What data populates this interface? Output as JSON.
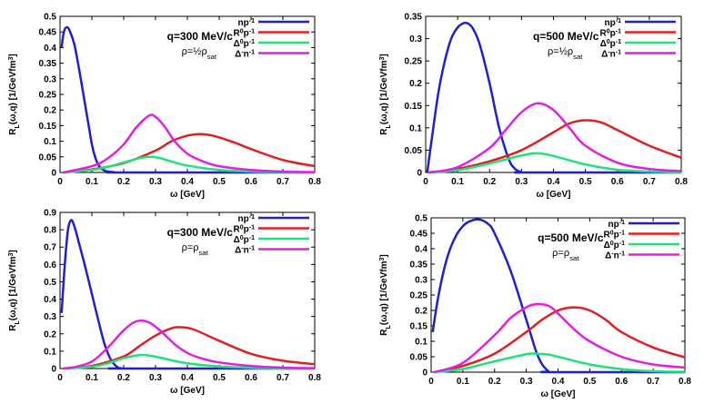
{
  "chart_data": [
    {
      "type": "line",
      "annotation": "q=300 MeV/c",
      "density_label": "ρ=½ρsat",
      "density_parts": [
        "ρ=½ρ",
        "sat"
      ],
      "ylabel": "RL(ω,q) [1/GeVfm³]",
      "ylabel_parts": [
        "R",
        "L",
        "(ω,q) [1/GeVfm",
        "3",
        "]"
      ],
      "xlabel": "ω [GeV]",
      "xlim": [
        0,
        0.8
      ],
      "ylim": [
        0,
        0.5
      ],
      "xticks": [
        "0",
        "0.1",
        "0.2",
        "0.3",
        "0.4",
        "0.5",
        "0.6",
        "0.7",
        "0.8"
      ],
      "yticks": [
        "0",
        "0.05",
        "0.1",
        "0.15",
        "0.2",
        "0.25",
        "0.3",
        "0.35",
        "0.4",
        "0.45",
        "0.5"
      ],
      "legend_position": "top-right",
      "series": [
        {
          "name": "np-1",
          "label_parts": [
            "np",
            "-1"
          ],
          "color": "#1f1fcf",
          "x": [
            0.005,
            0.012,
            0.022,
            0.032,
            0.045,
            0.06,
            0.075,
            0.09,
            0.1,
            0.11,
            0.12,
            0.13,
            0.14,
            0.15,
            0.17,
            0.2,
            0.8
          ],
          "y": [
            0.4,
            0.45,
            0.465,
            0.45,
            0.41,
            0.33,
            0.24,
            0.15,
            0.09,
            0.05,
            0.025,
            0.012,
            0.006,
            0.003,
            0.001,
            0,
            0
          ]
        },
        {
          "name": "R0p-1",
          "label_parts": [
            "R",
            "0",
            "p",
            "-1"
          ],
          "color": "#e02020",
          "x": [
            0.01,
            0.1,
            0.2,
            0.3,
            0.35,
            0.4,
            0.44,
            0.48,
            0.55,
            0.6,
            0.7,
            0.8
          ],
          "y": [
            0,
            0.01,
            0.03,
            0.07,
            0.1,
            0.118,
            0.123,
            0.118,
            0.095,
            0.075,
            0.04,
            0.02
          ]
        },
        {
          "name": "Δ0p-1",
          "label_parts": [
            "Δ",
            "0",
            "p",
            "-1"
          ],
          "color": "#22e07a",
          "x": [
            0.01,
            0.1,
            0.15,
            0.2,
            0.25,
            0.28,
            0.31,
            0.35,
            0.4,
            0.5,
            0.6,
            0.7,
            0.8
          ],
          "y": [
            0,
            0.008,
            0.018,
            0.032,
            0.046,
            0.05,
            0.047,
            0.035,
            0.022,
            0.008,
            0.003,
            0.001,
            0
          ]
        },
        {
          "name": "Δ-n-1",
          "label_parts": [
            "Δ",
            "-",
            "n",
            "-1"
          ],
          "color": "#e020e0",
          "x": [
            0.01,
            0.1,
            0.15,
            0.2,
            0.24,
            0.28,
            0.3,
            0.33,
            0.36,
            0.4,
            0.45,
            0.5,
            0.6,
            0.7,
            0.8
          ],
          "y": [
            0,
            0.02,
            0.045,
            0.09,
            0.145,
            0.182,
            0.178,
            0.145,
            0.1,
            0.06,
            0.035,
            0.02,
            0.008,
            0.003,
            0.001
          ]
        }
      ]
    },
    {
      "type": "line",
      "annotation": "q=500 MeV/c",
      "density_label": "ρ=½ρsat",
      "density_parts": [
        "ρ=½ρ",
        "sat"
      ],
      "ylabel": "RL(ω,q) [1/GeVfm³]",
      "ylabel_parts": [
        "R",
        "L",
        "(ω,q) [1/GeVfm",
        "3",
        "]"
      ],
      "xlabel": "ω [GeV]",
      "xlim": [
        0,
        0.8
      ],
      "ylim": [
        0,
        0.35
      ],
      "xticks": [
        "0",
        "0.1",
        "0.2",
        "0.3",
        "0.4",
        "0.5",
        "0.6",
        "0.7",
        "0.8"
      ],
      "yticks": [
        "0",
        "0.05",
        "0.1",
        "0.15",
        "0.2",
        "0.25",
        "0.3",
        "0.35"
      ],
      "legend_position": "top-right",
      "series": [
        {
          "name": "np-1",
          "label_parts": [
            "np",
            "-1"
          ],
          "color": "#1f1fcf",
          "x": [
            0.005,
            0.02,
            0.04,
            0.06,
            0.08,
            0.1,
            0.12,
            0.135,
            0.15,
            0.17,
            0.2,
            0.23,
            0.26,
            0.28,
            0.3,
            0.32,
            0.8
          ],
          "y": [
            0,
            0.08,
            0.18,
            0.25,
            0.3,
            0.325,
            0.335,
            0.333,
            0.32,
            0.285,
            0.2,
            0.1,
            0.03,
            0.008,
            0.001,
            0,
            0
          ]
        },
        {
          "name": "R0p-1",
          "label_parts": [
            "R",
            "0",
            "p",
            "-1"
          ],
          "color": "#e02020",
          "x": [
            0.01,
            0.1,
            0.2,
            0.3,
            0.4,
            0.45,
            0.5,
            0.55,
            0.6,
            0.7,
            0.8
          ],
          "y": [
            0,
            0.008,
            0.025,
            0.05,
            0.09,
            0.11,
            0.117,
            0.112,
            0.095,
            0.06,
            0.033
          ]
        },
        {
          "name": "Δ0p-1",
          "label_parts": [
            "Δ",
            "0",
            "p",
            "-1"
          ],
          "color": "#22e07a",
          "x": [
            0.01,
            0.1,
            0.2,
            0.3,
            0.35,
            0.4,
            0.5,
            0.6,
            0.7,
            0.8
          ],
          "y": [
            0,
            0.005,
            0.02,
            0.038,
            0.043,
            0.037,
            0.018,
            0.006,
            0.002,
            0
          ]
        },
        {
          "name": "Δ-n-1",
          "label_parts": [
            "Δ",
            "-",
            "n",
            "-1"
          ],
          "color": "#e020e0",
          "x": [
            0.01,
            0.1,
            0.2,
            0.25,
            0.3,
            0.35,
            0.4,
            0.45,
            0.5,
            0.6,
            0.7,
            0.8
          ],
          "y": [
            0,
            0.012,
            0.055,
            0.095,
            0.135,
            0.155,
            0.14,
            0.1,
            0.06,
            0.022,
            0.008,
            0.003
          ]
        }
      ]
    },
    {
      "type": "line",
      "annotation": "q=300 MeV/c",
      "density_label": "ρ=ρsat",
      "density_parts": [
        "ρ=ρ",
        "sat"
      ],
      "ylabel": "RL(ω,q) [1/GeVfm³]",
      "ylabel_parts": [
        "R",
        "L",
        "(ω,q) [1/GeVfm",
        "3",
        "]"
      ],
      "xlabel": "ω [GeV]",
      "xlim": [
        0,
        0.8
      ],
      "ylim": [
        0,
        0.9
      ],
      "xticks": [
        "0",
        "0.1",
        "0.2",
        "0.3",
        "0.4",
        "0.5",
        "0.6",
        "0.7",
        "0.8"
      ],
      "yticks": [
        "0",
        "0.1",
        "0.2",
        "0.3",
        "0.4",
        "0.5",
        "0.6",
        "0.7",
        "0.8",
        "0.9"
      ],
      "legend_position": "top-right",
      "series": [
        {
          "name": "np-1",
          "label_parts": [
            "np",
            "-1"
          ],
          "color": "#1f1fcf",
          "x": [
            0.005,
            0.015,
            0.025,
            0.035,
            0.045,
            0.06,
            0.08,
            0.1,
            0.12,
            0.14,
            0.16,
            0.18,
            0.19,
            0.2,
            0.8
          ],
          "y": [
            0.32,
            0.6,
            0.8,
            0.855,
            0.82,
            0.72,
            0.58,
            0.43,
            0.28,
            0.14,
            0.05,
            0.008,
            0.002,
            0,
            0
          ]
        },
        {
          "name": "R0p-1",
          "label_parts": [
            "R",
            "0",
            "p",
            "-1"
          ],
          "color": "#e02020",
          "x": [
            0.01,
            0.1,
            0.2,
            0.25,
            0.3,
            0.35,
            0.38,
            0.42,
            0.5,
            0.6,
            0.7,
            0.8
          ],
          "y": [
            0,
            0.015,
            0.07,
            0.13,
            0.19,
            0.232,
            0.238,
            0.225,
            0.16,
            0.085,
            0.045,
            0.025
          ]
        },
        {
          "name": "Δ0p-1",
          "label_parts": [
            "Δ",
            "0",
            "p",
            "-1"
          ],
          "color": "#22e07a",
          "x": [
            0.01,
            0.1,
            0.15,
            0.2,
            0.25,
            0.28,
            0.32,
            0.4,
            0.5,
            0.6,
            0.7,
            0.8
          ],
          "y": [
            0,
            0.01,
            0.03,
            0.06,
            0.078,
            0.075,
            0.06,
            0.03,
            0.012,
            0.004,
            0.001,
            0
          ]
        },
        {
          "name": "Δ-n-1",
          "label_parts": [
            "Δ",
            "-",
            "n",
            "-1"
          ],
          "color": "#e020e0",
          "x": [
            0.01,
            0.05,
            0.1,
            0.15,
            0.2,
            0.24,
            0.28,
            0.32,
            0.36,
            0.4,
            0.45,
            0.5,
            0.6,
            0.7,
            0.8
          ],
          "y": [
            0,
            0.01,
            0.04,
            0.12,
            0.22,
            0.272,
            0.265,
            0.21,
            0.14,
            0.09,
            0.055,
            0.035,
            0.015,
            0.005,
            0.002
          ]
        }
      ]
    },
    {
      "type": "line",
      "annotation": "q=500 MeV/c",
      "density_label": "ρ=ρsat",
      "density_parts": [
        "ρ=ρ",
        "sat"
      ],
      "ylabel": "RL(ω,q) [1/GeVfm³]",
      "ylabel_parts": [
        "R",
        "L",
        "(ω,q) [1/GeVfm",
        "3",
        "]"
      ],
      "xlabel": "ω [GeV]",
      "xlim": [
        0,
        0.8
      ],
      "ylim": [
        0,
        0.5
      ],
      "xticks": [
        "0",
        "0.1",
        "0.2",
        "0.3",
        "0.4",
        "0.5",
        "0.6",
        "0.7",
        "0.8"
      ],
      "yticks": [
        "0",
        "0.05",
        "0.1",
        "0.15",
        "0.2",
        "0.25",
        "0.3",
        "0.35",
        "0.4",
        "0.45",
        "0.5"
      ],
      "legend_position": "top-right",
      "series": [
        {
          "name": "np-1",
          "label_parts": [
            "np",
            "-1"
          ],
          "color": "#1f1fcf",
          "x": [
            0.005,
            0.02,
            0.04,
            0.06,
            0.08,
            0.1,
            0.12,
            0.15,
            0.18,
            0.2,
            0.25,
            0.3,
            0.33,
            0.35,
            0.37,
            0.38,
            0.8
          ],
          "y": [
            0.13,
            0.23,
            0.33,
            0.4,
            0.445,
            0.473,
            0.488,
            0.495,
            0.48,
            0.45,
            0.33,
            0.17,
            0.07,
            0.025,
            0.003,
            0,
            0
          ]
        },
        {
          "name": "R0p-1",
          "label_parts": [
            "R",
            "0",
            "p",
            "-1"
          ],
          "color": "#e02020",
          "x": [
            0.01,
            0.1,
            0.2,
            0.3,
            0.35,
            0.4,
            0.45,
            0.5,
            0.55,
            0.6,
            0.7,
            0.8
          ],
          "y": [
            0,
            0.02,
            0.06,
            0.13,
            0.17,
            0.2,
            0.21,
            0.2,
            0.17,
            0.13,
            0.08,
            0.048
          ]
        },
        {
          "name": "Δ0p-1",
          "label_parts": [
            "Δ",
            "0",
            "p",
            "-1"
          ],
          "color": "#22e07a",
          "x": [
            0.01,
            0.1,
            0.2,
            0.3,
            0.33,
            0.37,
            0.4,
            0.5,
            0.6,
            0.7,
            0.8
          ],
          "y": [
            0,
            0.01,
            0.035,
            0.058,
            0.06,
            0.057,
            0.05,
            0.025,
            0.01,
            0.003,
            0.001
          ]
        },
        {
          "name": "Δ-n-1",
          "label_parts": [
            "Δ",
            "-",
            "n",
            "-1"
          ],
          "color": "#e020e0",
          "x": [
            0.01,
            0.1,
            0.2,
            0.25,
            0.3,
            0.33,
            0.37,
            0.4,
            0.45,
            0.5,
            0.6,
            0.7,
            0.8
          ],
          "y": [
            0,
            0.03,
            0.12,
            0.175,
            0.21,
            0.22,
            0.215,
            0.19,
            0.14,
            0.1,
            0.05,
            0.025,
            0.015
          ]
        }
      ]
    }
  ]
}
